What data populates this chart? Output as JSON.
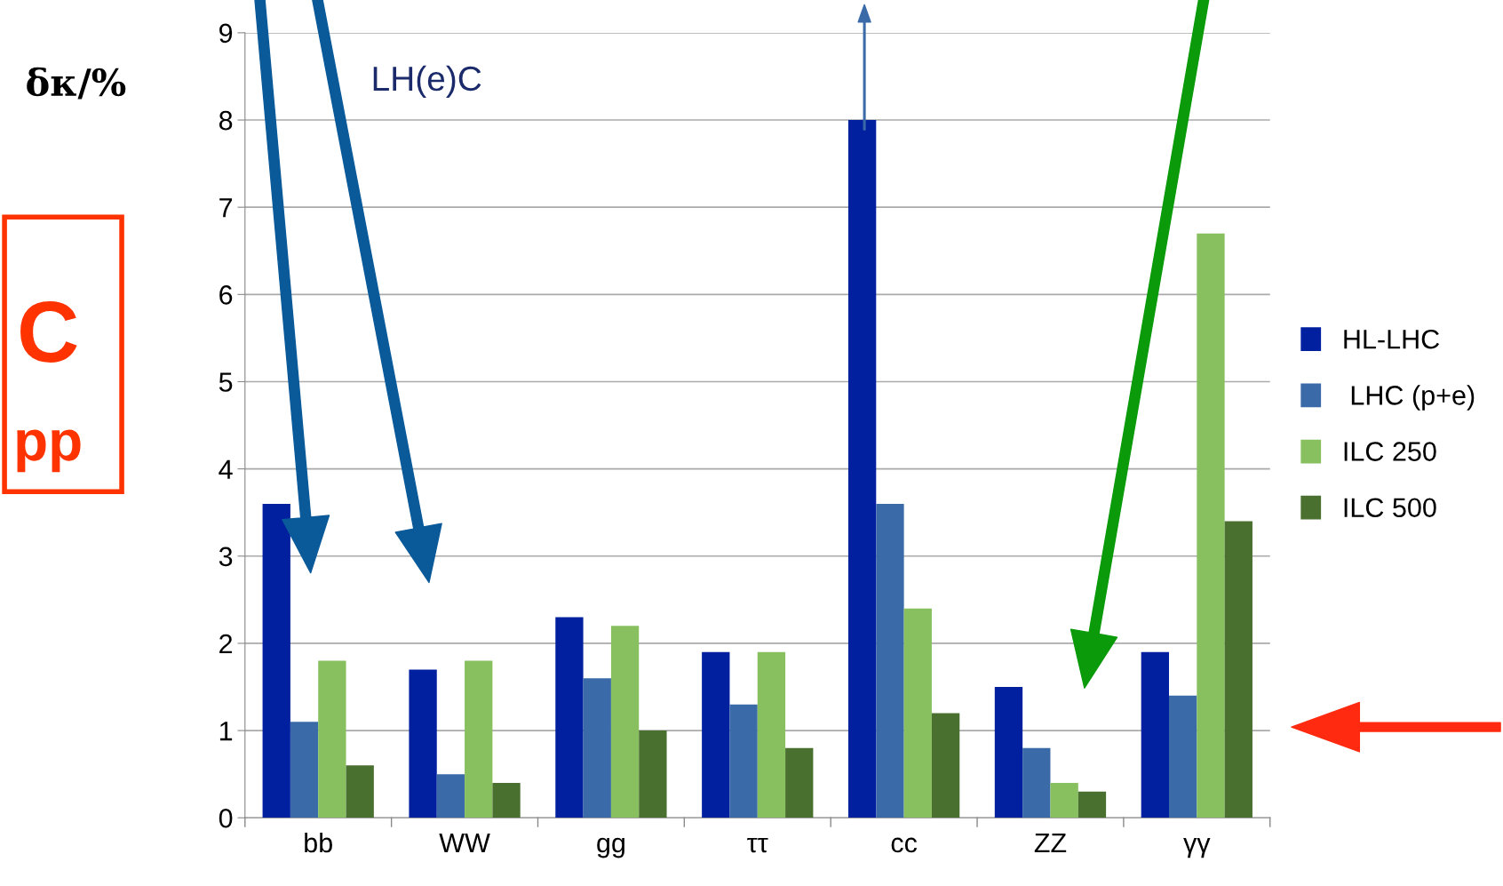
{
  "chart_data": {
    "type": "bar",
    "ylabel": "δκ/%",
    "categories": [
      "bb",
      "WW",
      "gg",
      "ττ",
      "cc",
      "ZZ",
      "γγ"
    ],
    "series": [
      {
        "name": "HL-LHC",
        "color": "#0020a0",
        "values": [
          3.6,
          1.7,
          2.3,
          1.9,
          8.0,
          1.5,
          1.9
        ]
      },
      {
        "name": " LHC (p+e)",
        "color": "#3a6aa8",
        "values": [
          1.1,
          0.5,
          1.6,
          1.3,
          3.6,
          0.8,
          1.4
        ]
      },
      {
        "name": "ILC 250",
        "color": "#88c060",
        "values": [
          1.8,
          1.8,
          2.2,
          1.9,
          2.4,
          0.4,
          6.7
        ]
      },
      {
        "name": "ILC 500",
        "color": "#4a7030",
        "values": [
          0.6,
          0.4,
          1.0,
          0.8,
          1.2,
          0.3,
          3.4
        ]
      }
    ],
    "ylim": [
      0,
      9
    ],
    "yticks": [
      0,
      1,
      2,
      3,
      4,
      5,
      6,
      7,
      8,
      9
    ],
    "grid": "y",
    "legend": "right",
    "annotations": [
      "LH(e)C",
      "C",
      "pp"
    ]
  }
}
